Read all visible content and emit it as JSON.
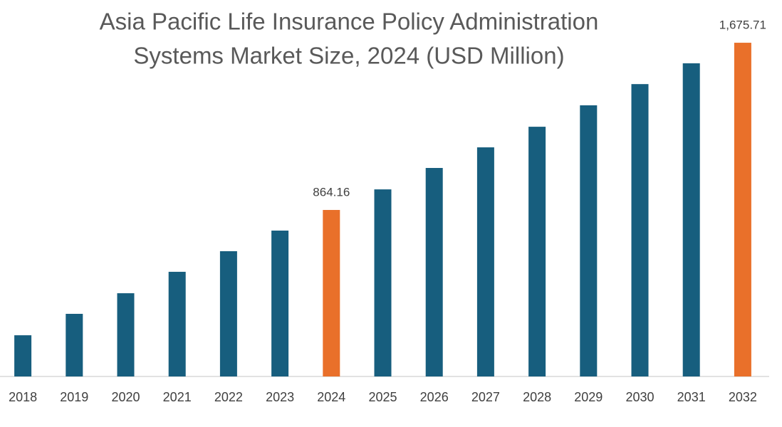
{
  "chart_data": {
    "type": "bar",
    "title": [
      "Asia Pacific Life Insurance Policy Administration",
      "Systems Market Size, 2024 (USD Million)"
    ],
    "categories": [
      "2018",
      "2019",
      "2020",
      "2021",
      "2022",
      "2023",
      "2024",
      "2025",
      "2026",
      "2027",
      "2028",
      "2029",
      "2030",
      "2031",
      "2032"
    ],
    "values": [
      256,
      360,
      460,
      564,
      664,
      764,
      864.16,
      964,
      1068,
      1168,
      1268,
      1372,
      1475,
      1576,
      1675.71
    ],
    "value_labels": [
      null,
      null,
      null,
      null,
      null,
      null,
      "864.16",
      null,
      null,
      null,
      null,
      null,
      null,
      null,
      "1,675.71"
    ],
    "colors": [
      "#175e7e",
      "#175e7e",
      "#175e7e",
      "#175e7e",
      "#175e7e",
      "#175e7e",
      "#e9702a",
      "#175e7e",
      "#175e7e",
      "#175e7e",
      "#175e7e",
      "#175e7e",
      "#175e7e",
      "#175e7e",
      "#e9702a"
    ],
    "ylim": [
      56,
      1745
    ]
  }
}
